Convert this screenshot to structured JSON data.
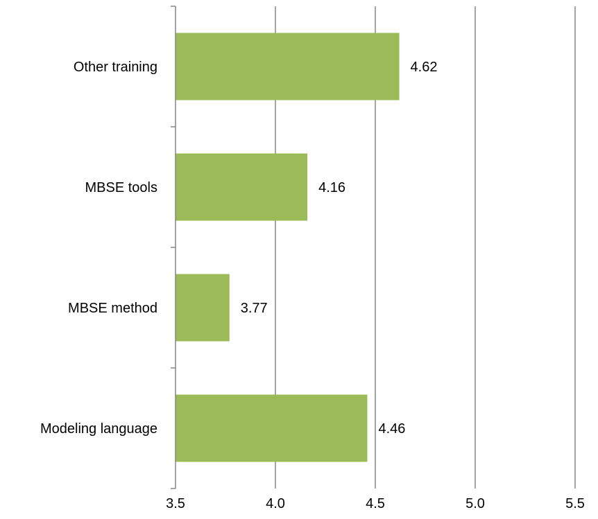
{
  "chart_data": {
    "type": "bar",
    "orientation": "horizontal",
    "categories": [
      "Modeling language",
      "MBSE method",
      "MBSE tools",
      "Other training"
    ],
    "values": [
      4.46,
      3.77,
      4.16,
      4.62
    ],
    "data_labels": [
      "4.46",
      "3.77",
      "4.16",
      "4.62"
    ],
    "xlim": [
      3.5,
      5.5
    ],
    "xticks": [
      3.5,
      4.0,
      4.5,
      5.0,
      5.5
    ],
    "xtick_labels": [
      "3.5",
      "4.0",
      "4.5",
      "5.0",
      "5.5"
    ],
    "grid": "vertical",
    "legend": "none",
    "title": "",
    "xlabel": "",
    "ylabel": "",
    "colors": {
      "bar": "#9BBB59",
      "grid": "#868686",
      "axis": "#868686"
    }
  }
}
